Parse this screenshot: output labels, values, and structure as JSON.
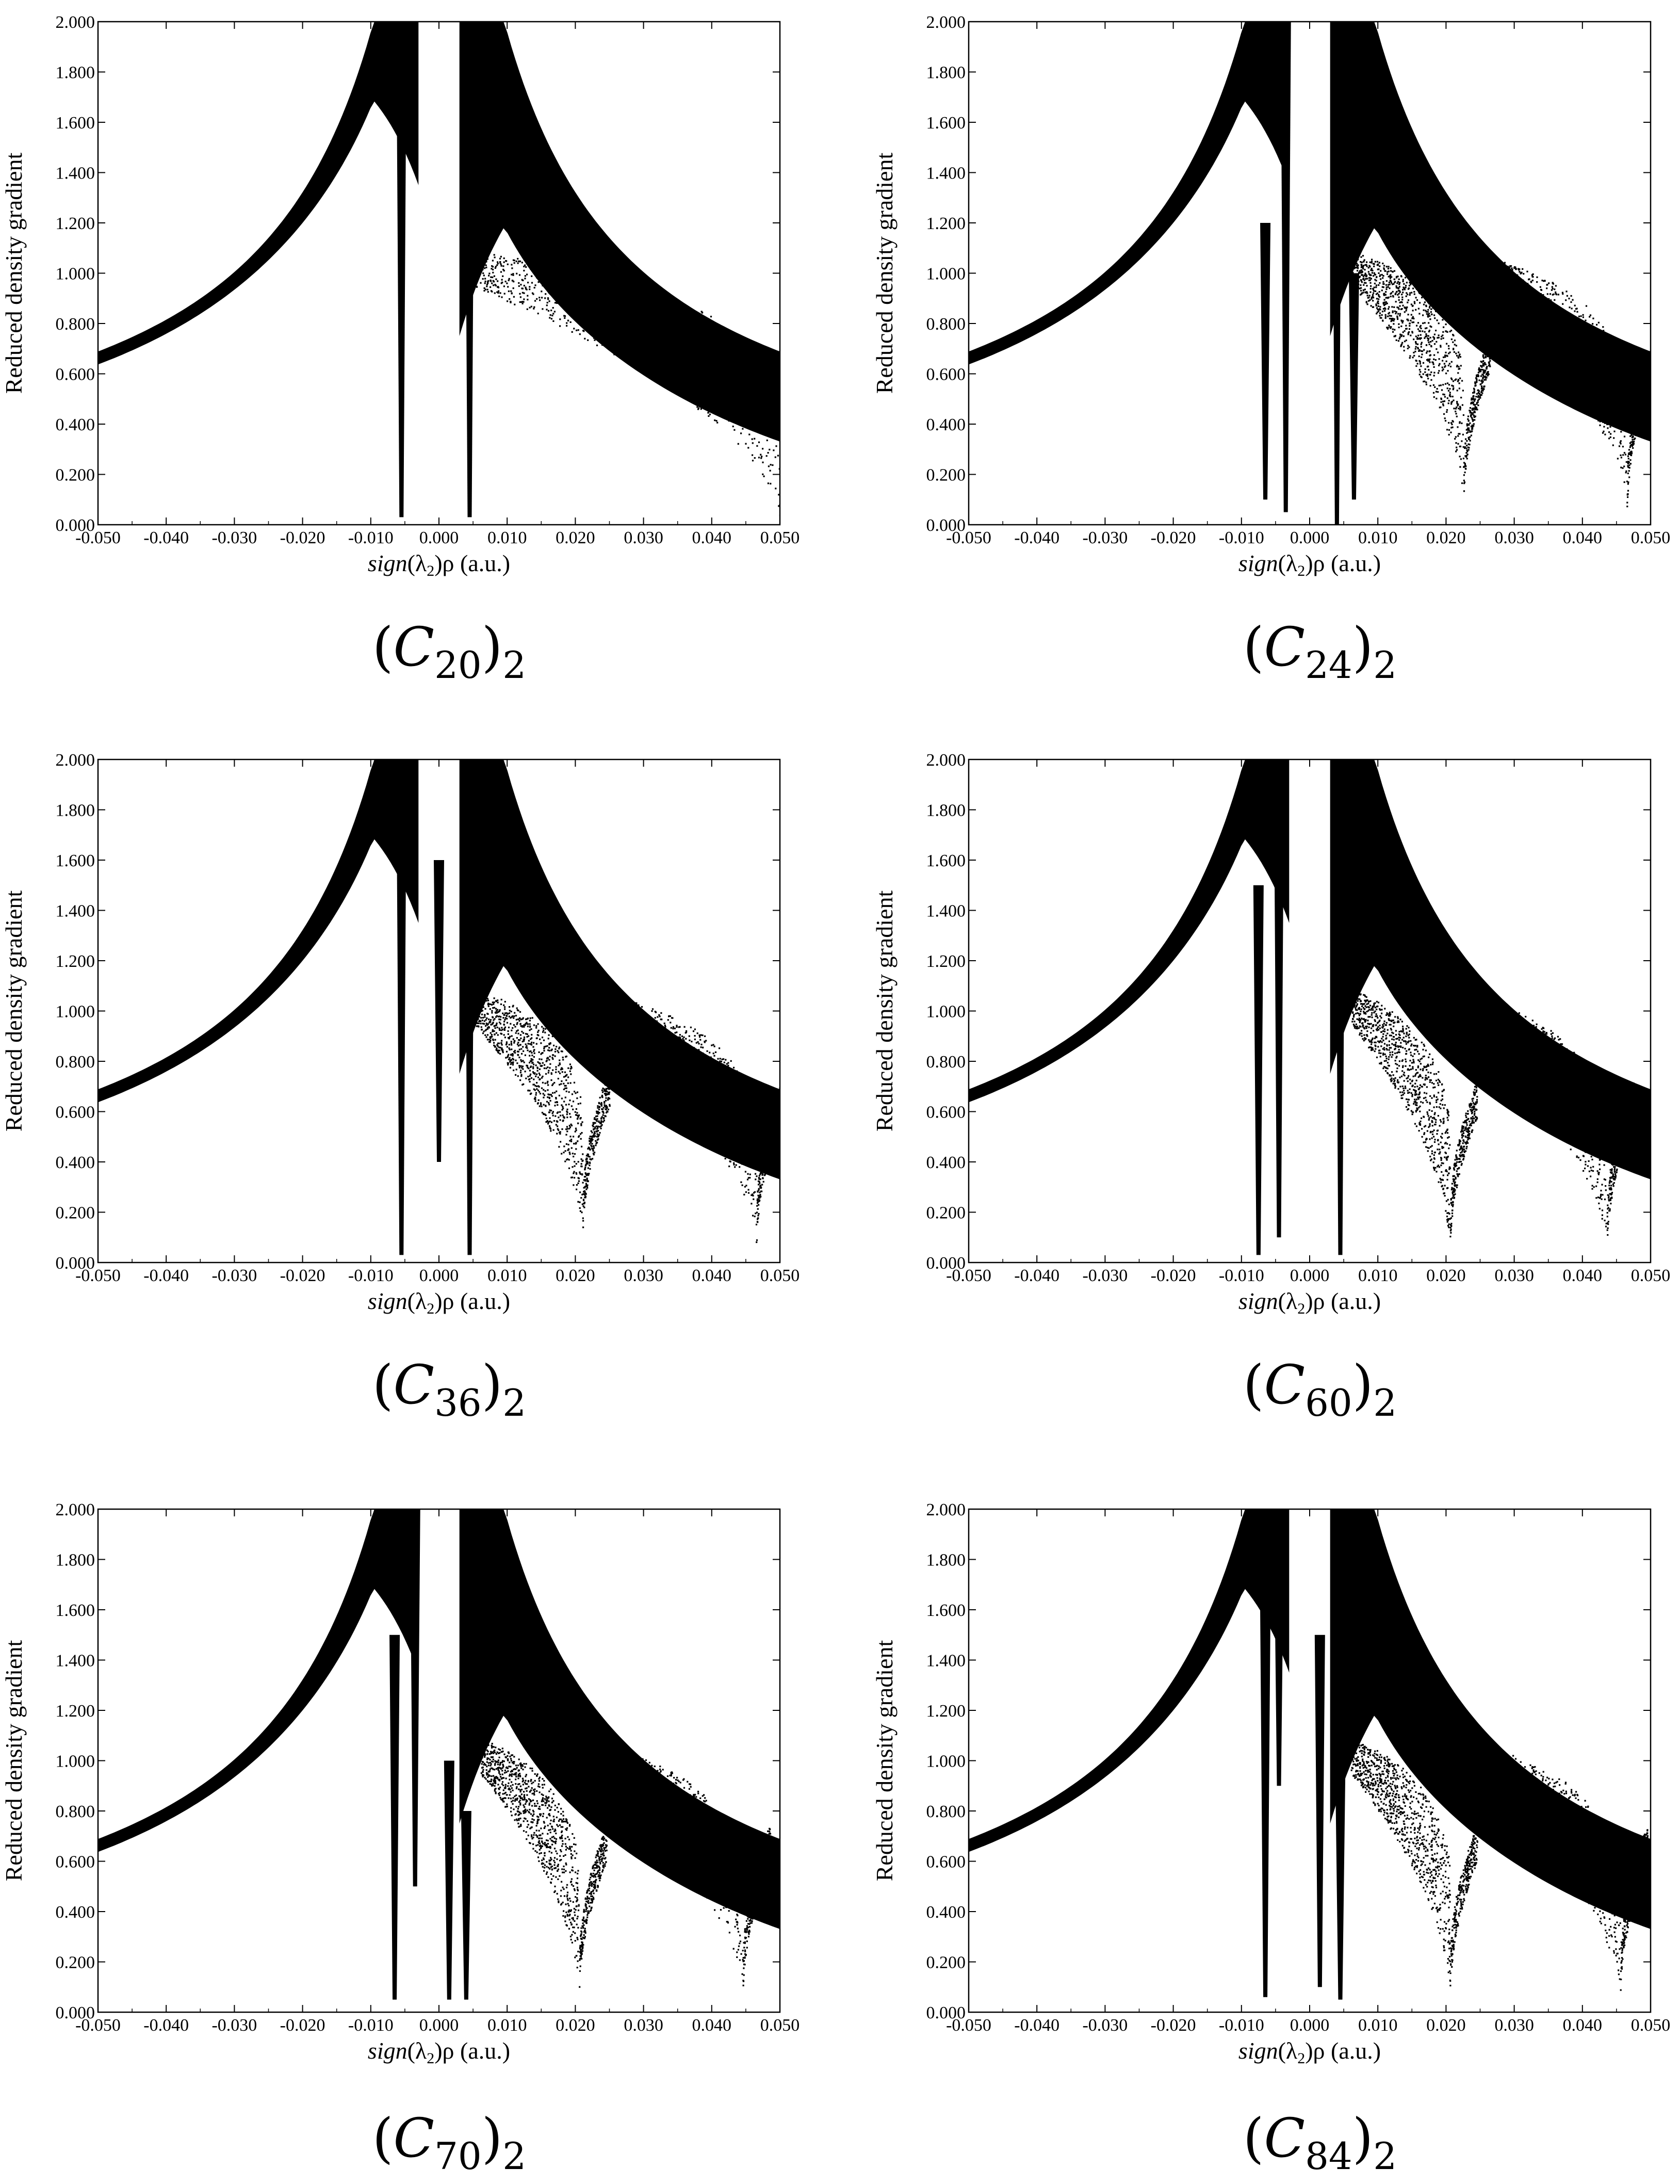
{
  "chart_data": [
    {
      "type": "scatter",
      "caption": {
        "base": "C",
        "sub": "20",
        "outer": "2"
      },
      "xlabel": {
        "pre": "sign",
        "lam": "λ",
        "lamsub": "2",
        "post": "ρ (a.u.)"
      },
      "ylabel": "Reduced density gradient",
      "xlim": [
        -0.05,
        0.05
      ],
      "ylim": [
        0,
        2
      ],
      "xticks": [
        "-0.050",
        "-0.040",
        "-0.030",
        "-0.020",
        "-0.010",
        "0.000",
        "0.010",
        "0.020",
        "0.030",
        "0.040",
        "0.050"
      ],
      "yticks": [
        "0.000",
        "0.200",
        "0.400",
        "0.600",
        "0.800",
        "1.000",
        "1.200",
        "1.400",
        "1.600",
        "1.800",
        "2.000"
      ],
      "grid": false,
      "legend": "none",
      "color": "#000000",
      "spikes": [
        {
          "x": -0.0055,
          "y_min": 0.03,
          "y_max": 2.0
        },
        {
          "x": 0.0045,
          "y_min": 0.03,
          "y_max": 2.0
        }
      ],
      "dip_curves": [
        {
          "x_start": 0.005,
          "x_min": 0.05,
          "y_min": 0.0
        }
      ]
    },
    {
      "type": "scatter",
      "caption": {
        "base": "C",
        "sub": "24",
        "outer": "2"
      },
      "xlabel": {
        "pre": "sign",
        "lam": "λ",
        "lamsub": "2",
        "post": "ρ (a.u.)"
      },
      "ylabel": "Reduced density gradient",
      "xlim": [
        -0.05,
        0.05
      ],
      "ylim": [
        0,
        2
      ],
      "xticks": [
        "-0.050",
        "-0.040",
        "-0.030",
        "-0.020",
        "-0.010",
        "0.000",
        "0.010",
        "0.020",
        "0.030",
        "0.040",
        "0.050"
      ],
      "yticks": [
        "0.000",
        "0.200",
        "0.400",
        "0.600",
        "0.800",
        "1.000",
        "1.200",
        "1.400",
        "1.600",
        "1.800",
        "2.000"
      ],
      "grid": false,
      "legend": "none",
      "color": "#000000",
      "spikes": [
        {
          "x": -0.0065,
          "y_min": 0.1,
          "y_max": 1.2
        },
        {
          "x": -0.0035,
          "y_min": 0.05,
          "y_max": 2.0
        },
        {
          "x": 0.004,
          "y_min": 0.0,
          "y_max": 2.0
        },
        {
          "x": 0.0065,
          "y_min": 0.1,
          "y_max": 1.0
        }
      ],
      "dip_curves": [
        {
          "x_start": 0.006,
          "x_min": 0.0225,
          "y_min": 0.07
        },
        {
          "x_start": 0.0225,
          "x_min": 0.0465,
          "y_min": 0.05
        }
      ]
    },
    {
      "type": "scatter",
      "caption": {
        "base": "C",
        "sub": "36",
        "outer": "2"
      },
      "xlabel": {
        "pre": "sign",
        "lam": "λ",
        "lamsub": "2",
        "post": "ρ (a.u.)"
      },
      "ylabel": "Reduced density gradient",
      "xlim": [
        -0.05,
        0.05
      ],
      "ylim": [
        0,
        2
      ],
      "xticks": [
        "-0.050",
        "-0.040",
        "-0.030",
        "-0.020",
        "-0.010",
        "0.000",
        "0.010",
        "0.020",
        "0.030",
        "0.040",
        "0.050"
      ],
      "yticks": [
        "0.000",
        "0.200",
        "0.400",
        "0.600",
        "0.800",
        "1.000",
        "1.200",
        "1.400",
        "1.600",
        "1.800",
        "2.000"
      ],
      "grid": false,
      "legend": "none",
      "color": "#000000",
      "spikes": [
        {
          "x": -0.0055,
          "y_min": 0.03,
          "y_max": 2.0
        },
        {
          "x": 0.0,
          "y_min": 0.4,
          "y_max": 1.6
        },
        {
          "x": 0.0045,
          "y_min": 0.03,
          "y_max": 2.0
        }
      ],
      "dip_curves": [
        {
          "x_start": 0.005,
          "x_min": 0.021,
          "y_min": 0.08
        },
        {
          "x_start": 0.022,
          "x_min": 0.0465,
          "y_min": 0.05
        }
      ]
    },
    {
      "type": "scatter",
      "caption": {
        "base": "C",
        "sub": "60",
        "outer": "2"
      },
      "xlabel": {
        "pre": "sign",
        "lam": "λ",
        "lamsub": "2",
        "post": "ρ (a.u.)"
      },
      "ylabel": "Reduced density gradient",
      "xlim": [
        -0.05,
        0.05
      ],
      "ylim": [
        0,
        2
      ],
      "xticks": [
        "-0.050",
        "-0.040",
        "-0.030",
        "-0.020",
        "-0.010",
        "0.000",
        "0.010",
        "0.020",
        "0.030",
        "0.040",
        "0.050"
      ],
      "yticks": [
        "0.000",
        "0.200",
        "0.400",
        "0.600",
        "0.800",
        "1.000",
        "1.200",
        "1.400",
        "1.600",
        "1.800",
        "2.000"
      ],
      "grid": false,
      "legend": "none",
      "color": "#000000",
      "spikes": [
        {
          "x": -0.0075,
          "y_min": 0.03,
          "y_max": 1.5
        },
        {
          "x": -0.0045,
          "y_min": 0.1,
          "y_max": 2.0
        },
        {
          "x": 0.0045,
          "y_min": 0.03,
          "y_max": 2.0
        }
      ],
      "dip_curves": [
        {
          "x_start": 0.006,
          "x_min": 0.0205,
          "y_min": 0.03
        },
        {
          "x_start": 0.0215,
          "x_min": 0.0435,
          "y_min": 0.03
        }
      ]
    },
    {
      "type": "scatter",
      "caption": {
        "base": "C",
        "sub": "70",
        "outer": "2"
      },
      "xlabel": {
        "pre": "sign",
        "lam": "λ",
        "lamsub": "2",
        "post": "ρ (a.u.)"
      },
      "ylabel": "Reduced density gradient",
      "xlim": [
        -0.05,
        0.05
      ],
      "ylim": [
        0,
        2
      ],
      "xticks": [
        "-0.050",
        "-0.040",
        "-0.030",
        "-0.020",
        "-0.010",
        "0.000",
        "0.010",
        "0.020",
        "0.030",
        "0.040",
        "0.050"
      ],
      "yticks": [
        "0.000",
        "0.200",
        "0.400",
        "0.600",
        "0.800",
        "1.000",
        "1.200",
        "1.400",
        "1.600",
        "1.800",
        "2.000"
      ],
      "grid": false,
      "legend": "none",
      "color": "#000000",
      "spikes": [
        {
          "x": -0.0065,
          "y_min": 0.05,
          "y_max": 1.5
        },
        {
          "x": -0.0035,
          "y_min": 0.5,
          "y_max": 2.0
        },
        {
          "x": 0.0015,
          "y_min": 0.05,
          "y_max": 1.0
        },
        {
          "x": 0.004,
          "y_min": 0.05,
          "y_max": 0.8
        }
      ],
      "dip_curves": [
        {
          "x_start": 0.006,
          "x_min": 0.0205,
          "y_min": 0.05
        },
        {
          "x_start": 0.021,
          "x_min": 0.0445,
          "y_min": 0.05
        }
      ]
    },
    {
      "type": "scatter",
      "caption": {
        "base": "C",
        "sub": "84",
        "outer": "2"
      },
      "xlabel": {
        "pre": "sign",
        "lam": "λ",
        "lamsub": "2",
        "post": "ρ (a.u.)"
      },
      "ylabel": "Reduced density gradient",
      "xlim": [
        -0.05,
        0.05
      ],
      "ylim": [
        0,
        2
      ],
      "xticks": [
        "-0.050",
        "-0.040",
        "-0.030",
        "-0.020",
        "-0.010",
        "0.000",
        "0.010",
        "0.020",
        "0.030",
        "0.040",
        "0.050"
      ],
      "yticks": [
        "0.000",
        "0.200",
        "0.400",
        "0.600",
        "0.800",
        "1.000",
        "1.200",
        "1.400",
        "1.600",
        "1.800",
        "2.000"
      ],
      "grid": false,
      "legend": "none",
      "color": "#000000",
      "spikes": [
        {
          "x": -0.0065,
          "y_min": 0.06,
          "y_max": 1.6
        },
        {
          "x": -0.0045,
          "y_min": 0.9,
          "y_max": 2.0
        },
        {
          "x": 0.0015,
          "y_min": 0.1,
          "y_max": 1.5
        },
        {
          "x": 0.0045,
          "y_min": 0.05,
          "y_max": 1.0
        }
      ],
      "dip_curves": [
        {
          "x_start": 0.006,
          "x_min": 0.0205,
          "y_min": 0.05
        },
        {
          "x_start": 0.0215,
          "x_min": 0.0455,
          "y_min": 0.05
        }
      ]
    }
  ]
}
